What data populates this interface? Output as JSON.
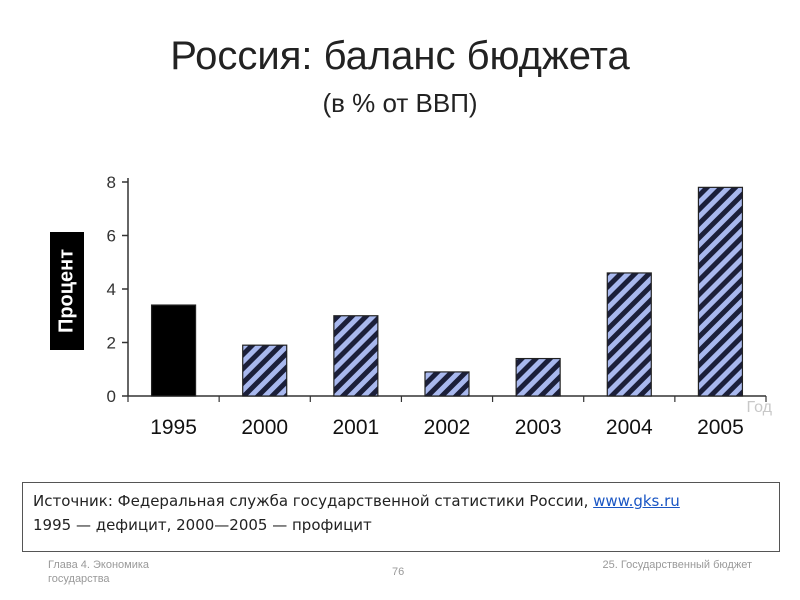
{
  "slide": {
    "title": "Россия: баланс бюджета",
    "subtitle": "(в % от ВВП)"
  },
  "chart_data": {
    "type": "bar",
    "title": "",
    "xlabel": "Год",
    "ylabel": "Процент",
    "categories": [
      "1995",
      "2000",
      "2001",
      "2002",
      "2003",
      "2004",
      "2005"
    ],
    "values": [
      3.4,
      1.9,
      3.0,
      0.9,
      1.4,
      4.6,
      7.8
    ],
    "bar_styles": [
      "solid",
      "hatched",
      "hatched",
      "hatched",
      "hatched",
      "hatched",
      "hatched"
    ],
    "ylim": [
      0,
      8
    ],
    "yticks": [
      "0",
      "2",
      "4",
      "6",
      "8"
    ],
    "grid": false,
    "colors": {
      "deficit": "#000000",
      "surplus_hatch": "#1b1f3a",
      "surplus_fill": "#a8b8ee"
    }
  },
  "source": {
    "label": "Источник: Федеральная служба государственной статистики России, ",
    "link": "www.gks.ru",
    "note": "1995 — дефицит, 2000—2005 — профицит"
  },
  "footer": {
    "left": "Глава 4. Экономика государства",
    "page": "76",
    "right": "25. Государственный бюджет"
  }
}
